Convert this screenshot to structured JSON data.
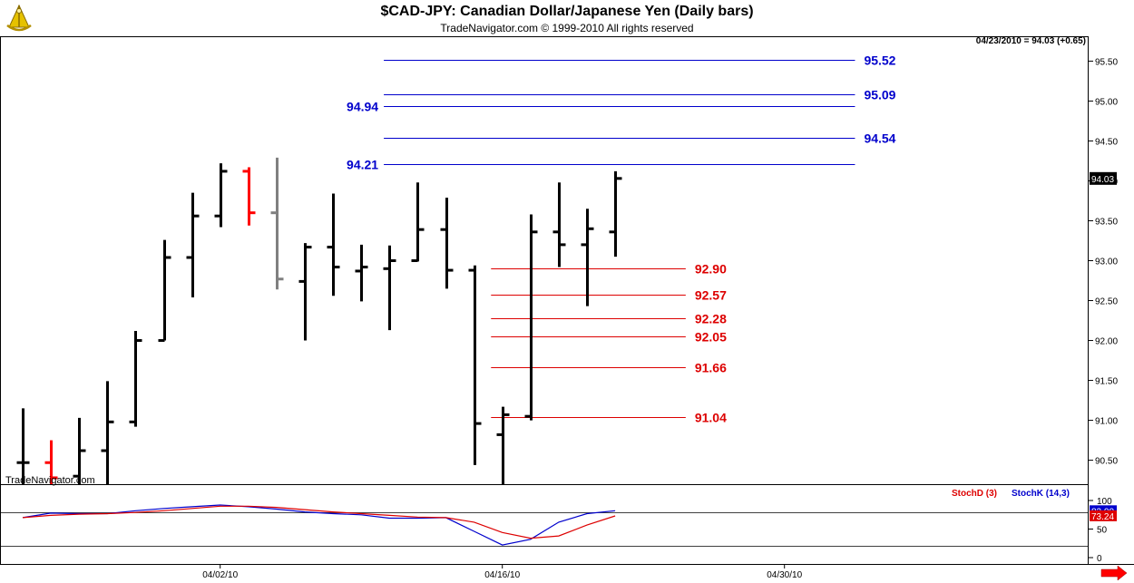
{
  "header": {
    "title": "$CAD-JPY:  Canadian Dollar/Japanese Yen  (Daily bars)",
    "subtitle": "TradeNavigator.com © 1999-2010 All rights reserved",
    "last_quote": "04/23/2010 = 94.03 (+0.65)",
    "watermark": "TradeNavigator.com",
    "logo_icon": "sextant-logo-icon",
    "scroll_icon": "arrow-right-icon"
  },
  "chart_data": [
    {
      "type": "ohlc",
      "title": "$CAD-JPY:  Canadian Dollar/Japanese Yen  (Daily bars)",
      "ylim": [
        90.2,
        95.8
      ],
      "yticks": [
        {
          "value": 95.5,
          "label": "95.50"
        },
        {
          "value": 95.0,
          "label": "95.00"
        },
        {
          "value": 94.5,
          "label": "94.50"
        },
        {
          "value": 94.0,
          "label": "94.00"
        },
        {
          "value": 93.5,
          "label": "93.50"
        },
        {
          "value": 93.0,
          "label": "93.00"
        },
        {
          "value": 92.5,
          "label": "92.50"
        },
        {
          "value": 92.0,
          "label": "92.00"
        },
        {
          "value": 91.5,
          "label": "91.50"
        },
        {
          "value": 91.0,
          "label": "91.00"
        },
        {
          "value": 90.5,
          "label": "90.50"
        }
      ],
      "xticks": [
        {
          "index": 7,
          "label": "04/02/10"
        },
        {
          "index": 17,
          "label": "04/16/10"
        },
        {
          "index": 27,
          "label": "04/30/10"
        }
      ],
      "x_total": 37,
      "price_label": {
        "value": 94.03,
        "text": "94.03"
      },
      "colors": {
        "up": "#000000",
        "down": "#ff0000",
        "neutral": "#808080",
        "blue_level": "#0000cc",
        "red_level": "#dd0000"
      },
      "bars": [
        {
          "o": 90.47,
          "h": 91.15,
          "l": 90.2,
          "c": 90.47,
          "color": "#000000"
        },
        {
          "o": 90.47,
          "h": 90.75,
          "l": 90.2,
          "c": 90.28,
          "color": "#ff0000"
        },
        {
          "o": 90.3,
          "h": 91.03,
          "l": 90.2,
          "c": 90.62,
          "color": "#000000"
        },
        {
          "o": 90.62,
          "h": 91.49,
          "l": 90.2,
          "c": 90.98,
          "color": "#000000"
        },
        {
          "o": 90.98,
          "h": 92.12,
          "l": 90.92,
          "c": 92.0,
          "color": "#000000"
        },
        {
          "o": 92.0,
          "h": 93.26,
          "l": 92.0,
          "c": 93.04,
          "color": "#000000"
        },
        {
          "o": 93.04,
          "h": 93.85,
          "l": 92.54,
          "c": 93.56,
          "color": "#000000"
        },
        {
          "o": 93.56,
          "h": 94.22,
          "l": 93.42,
          "c": 94.12,
          "color": "#000000"
        },
        {
          "o": 94.12,
          "h": 94.17,
          "l": 93.44,
          "c": 93.6,
          "color": "#ff0000"
        },
        {
          "o": 93.6,
          "h": 94.29,
          "l": 92.64,
          "c": 92.77,
          "color": "#808080"
        },
        {
          "o": 92.74,
          "h": 93.22,
          "l": 92.0,
          "c": 93.17,
          "color": "#000000"
        },
        {
          "o": 93.17,
          "h": 93.84,
          "l": 92.56,
          "c": 92.92,
          "color": "#000000"
        },
        {
          "o": 92.87,
          "h": 93.2,
          "l": 92.49,
          "c": 92.92,
          "color": "#000000"
        },
        {
          "o": 92.9,
          "h": 93.19,
          "l": 92.13,
          "c": 93.0,
          "color": "#000000"
        },
        {
          "o": 93.0,
          "h": 93.98,
          "l": 92.99,
          "c": 93.39,
          "color": "#000000"
        },
        {
          "o": 93.39,
          "h": 93.79,
          "l": 92.65,
          "c": 92.88,
          "color": "#000000"
        },
        {
          "o": 92.88,
          "h": 92.94,
          "l": 90.44,
          "c": 90.96,
          "color": "#000000"
        },
        {
          "o": 90.82,
          "h": 91.17,
          "l": 90.2,
          "c": 91.07,
          "color": "#000000"
        },
        {
          "o": 91.05,
          "h": 93.58,
          "l": 91.0,
          "c": 93.36,
          "color": "#000000"
        },
        {
          "o": 93.36,
          "h": 93.98,
          "l": 92.92,
          "c": 93.2,
          "color": "#000000"
        },
        {
          "o": 93.2,
          "h": 93.65,
          "l": 92.43,
          "c": 93.4,
          "color": "#000000"
        },
        {
          "o": 93.36,
          "h": 94.12,
          "l": 93.05,
          "c": 94.03,
          "color": "#000000"
        }
      ],
      "levels": [
        {
          "value": 95.52,
          "label": "95.52",
          "side": "right",
          "color": "#0000cc",
          "from_index": 12.8,
          "to_index": 29.5
        },
        {
          "value": 95.09,
          "label": "95.09",
          "side": "right",
          "color": "#0000cc",
          "from_index": 12.8,
          "to_index": 29.5
        },
        {
          "value": 94.94,
          "label": "94.94",
          "side": "left",
          "color": "#0000cc",
          "from_index": 12.8,
          "to_index": 29.5
        },
        {
          "value": 94.54,
          "label": "94.54",
          "side": "right",
          "color": "#0000cc",
          "from_index": 12.8,
          "to_index": 29.5
        },
        {
          "value": 94.21,
          "label": "94.21",
          "side": "left",
          "color": "#0000cc",
          "from_index": 12.8,
          "to_index": 29.5
        },
        {
          "value": 92.9,
          "label": "92.90",
          "side": "right",
          "color": "#dd0000",
          "from_index": 16.6,
          "to_index": 23.5
        },
        {
          "value": 92.57,
          "label": "92.57",
          "side": "right",
          "color": "#dd0000",
          "from_index": 16.6,
          "to_index": 23.5
        },
        {
          "value": 92.28,
          "label": "92.28",
          "side": "right",
          "color": "#dd0000",
          "from_index": 16.6,
          "to_index": 23.5
        },
        {
          "value": 92.05,
          "label": "92.05",
          "side": "right",
          "color": "#dd0000",
          "from_index": 16.6,
          "to_index": 23.5
        },
        {
          "value": 91.66,
          "label": "91.66",
          "side": "right",
          "color": "#dd0000",
          "from_index": 16.6,
          "to_index": 23.5
        },
        {
          "value": 91.04,
          "label": "91.04",
          "side": "right",
          "color": "#dd0000",
          "from_index": 16.6,
          "to_index": 23.5
        }
      ]
    },
    {
      "type": "line",
      "ylim": [
        0,
        100
      ],
      "yticks": [
        {
          "value": 100,
          "label": "100"
        },
        {
          "value": 50,
          "label": "50"
        },
        {
          "value": 0,
          "label": "0"
        }
      ],
      "legend": [
        {
          "name": "StochD (3)",
          "color": "#dd0000"
        },
        {
          "name": "StochK (14,3)",
          "color": "#0000cc"
        }
      ],
      "reference_levels": [
        80,
        20
      ],
      "value_labels": [
        {
          "value": 82.0,
          "text": "82.00",
          "color": "#0000cc"
        },
        {
          "value": 73.24,
          "text": "73.24",
          "color": "#dd0000"
        }
      ],
      "series": [
        {
          "name": "StochK (14,3)",
          "color": "#0000cc",
          "x": [
            0,
            1,
            2,
            3,
            4,
            5,
            6,
            7,
            8,
            9,
            10,
            11,
            12,
            13,
            14,
            15,
            16,
            17,
            18,
            19,
            20,
            21
          ],
          "values": [
            70,
            78,
            77,
            77,
            82,
            86,
            89,
            92,
            89,
            85,
            80,
            77,
            75,
            69,
            69,
            70,
            46,
            22,
            32,
            62,
            77,
            82
          ]
        },
        {
          "name": "StochD (3)",
          "color": "#dd0000",
          "x": [
            0,
            1,
            2,
            3,
            4,
            5,
            6,
            7,
            8,
            9,
            10,
            11,
            12,
            13,
            14,
            15,
            16,
            17,
            18,
            19,
            20,
            21
          ],
          "values": [
            70,
            74,
            76,
            77,
            79,
            82,
            86,
            90,
            90,
            88,
            84,
            80,
            77,
            74,
            71,
            70,
            62,
            44,
            34,
            38,
            57,
            73
          ]
        }
      ]
    }
  ]
}
